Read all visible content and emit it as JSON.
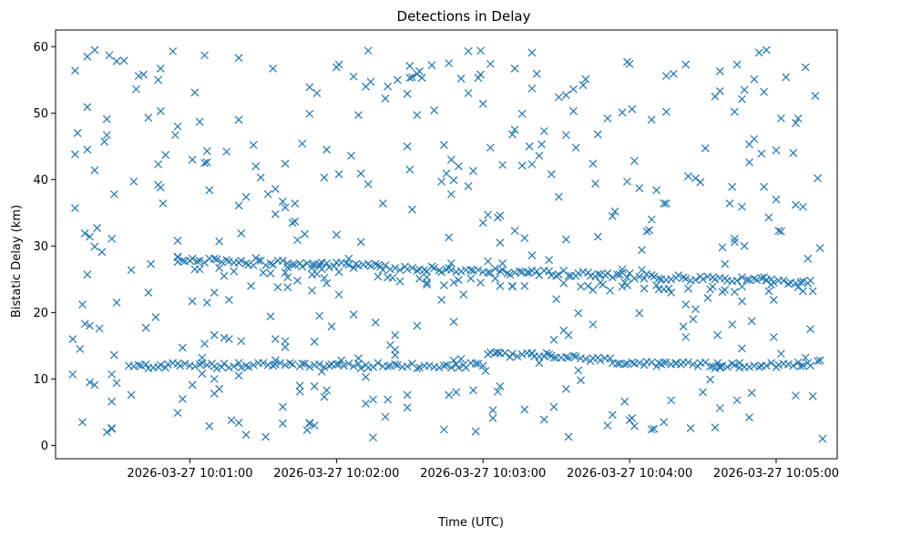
{
  "chart_data": {
    "type": "scatter",
    "title": "Detections in Delay",
    "xlabel": "Time (UTC)",
    "ylabel": "Bistatic Delay (km)",
    "marker": "x",
    "color": "#1f77b4",
    "grid": false,
    "legend": "none",
    "xlim": [
      "2026-03-27 10:00:05",
      "2026-03-27 10:05:25"
    ],
    "ylim": [
      -2,
      62.5
    ],
    "xticks": [
      "2026-03-27 10:01:00",
      "2026-03-27 10:02:00",
      "2026-03-27 10:03:00",
      "2026-03-27 10:04:00",
      "2026-03-27 10:05:00"
    ],
    "yticks": [
      0,
      10,
      20,
      30,
      40,
      50,
      60
    ],
    "series": [
      {
        "points": []
      }
    ]
  }
}
